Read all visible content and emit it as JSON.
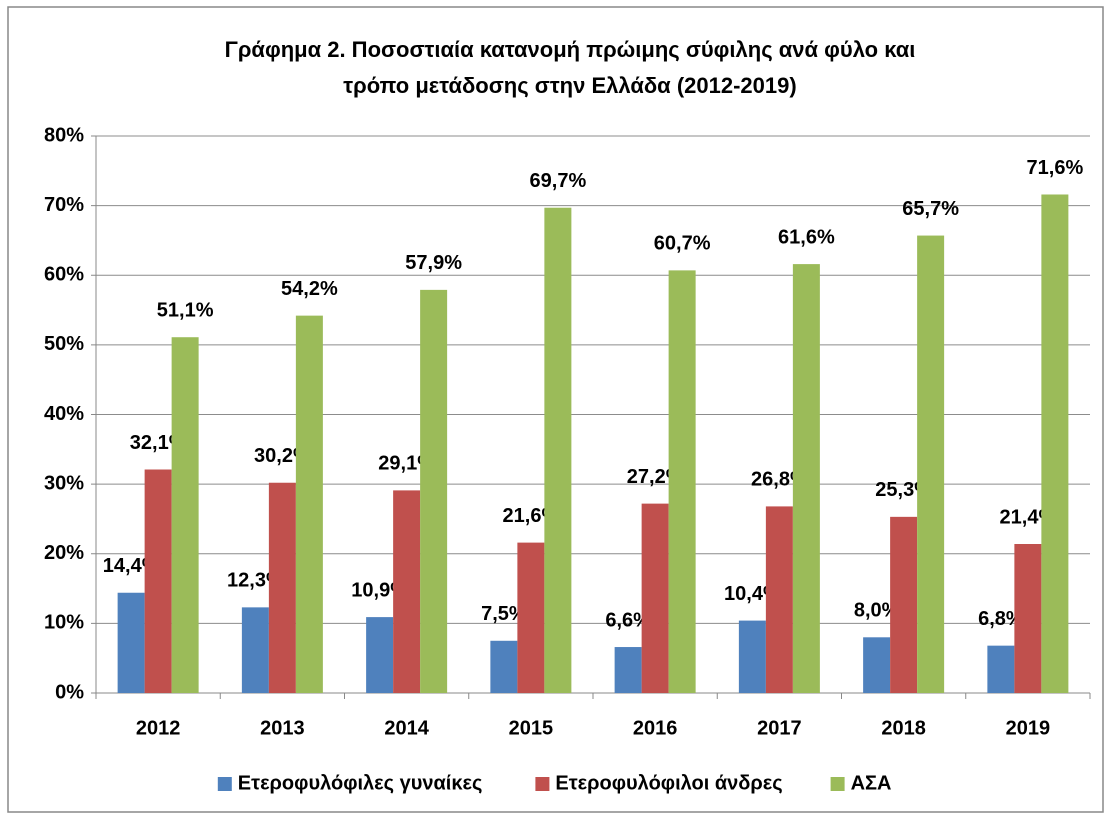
{
  "chart_data": {
    "type": "bar",
    "title": [
      "Γράφημα 2. Ποσοστιαία κατανομή πρώιμης σύφιλης ανά φύλο και",
      "τρόπο μετάδοσης στην Ελλάδα (2012-2019)"
    ],
    "categories": [
      "2012",
      "2013",
      "2014",
      "2015",
      "2016",
      "2017",
      "2018",
      "2019"
    ],
    "series": [
      {
        "name": "Ετεροφυλόφιλες γυναίκες",
        "color": "#4f81bd",
        "values": [
          14.4,
          12.3,
          10.9,
          7.5,
          6.6,
          10.4,
          8.0,
          6.8
        ],
        "value_labels": [
          "14,4%",
          "12,3%",
          "10,9%",
          "7,5%",
          "6,6%",
          "10,4%",
          "8,0%",
          "6,8%"
        ]
      },
      {
        "name": "Ετεροφυλόφιλοι άνδρες",
        "color": "#c0504d",
        "values": [
          32.1,
          30.2,
          29.1,
          21.6,
          27.2,
          26.8,
          25.3,
          21.4
        ],
        "value_labels": [
          "32,1%",
          "30,2%",
          "29,1%",
          "21,6%",
          "27,2%",
          "26,8%",
          "25,3%",
          "21,4%"
        ]
      },
      {
        "name": "ΑΣΑ",
        "color": "#9bbb59",
        "values": [
          51.1,
          54.2,
          57.9,
          69.7,
          60.7,
          61.6,
          65.7,
          71.6
        ],
        "value_labels": [
          "51,1%",
          "54,2%",
          "57,9%",
          "69,7%",
          "60,7%",
          "61,6%",
          "65,7%",
          "71,6%"
        ]
      }
    ],
    "ylim": [
      0,
      80
    ],
    "yticks": [
      {
        "value": 0,
        "label": "0%"
      },
      {
        "value": 10,
        "label": "10%"
      },
      {
        "value": 20,
        "label": "20%"
      },
      {
        "value": 30,
        "label": "30%"
      },
      {
        "value": 40,
        "label": "40%"
      },
      {
        "value": 50,
        "label": "50%"
      },
      {
        "value": 60,
        "label": "60%"
      },
      {
        "value": 70,
        "label": "70%"
      },
      {
        "value": 80,
        "label": "80%"
      }
    ],
    "grid": true,
    "legend": "bottom"
  }
}
